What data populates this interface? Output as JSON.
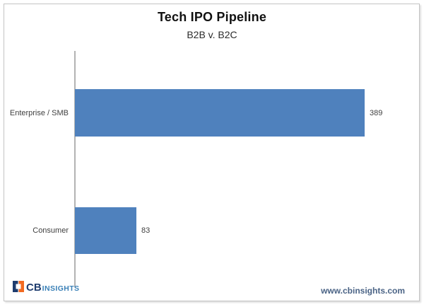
{
  "chart_data": {
    "type": "bar",
    "orientation": "horizontal",
    "title": "Tech IPO Pipeline",
    "subtitle": "B2B v. B2C",
    "categories": [
      "Enterprise / SMB",
      "Consumer"
    ],
    "values": [
      389,
      83
    ],
    "value_labels": [
      "389",
      "83"
    ],
    "bar_color": "#4F81BD",
    "grid": false,
    "legend": false,
    "axis": {
      "category_axis_line_color": "#b3b3b3",
      "value_axis_visible": false
    }
  },
  "branding": {
    "logo_text_cb": "CB",
    "logo_text_insights": "INSIGHTS",
    "logo_navy": "#1e3c6e",
    "logo_orange": "#f26a21",
    "website": "www.cbinsights.com"
  }
}
